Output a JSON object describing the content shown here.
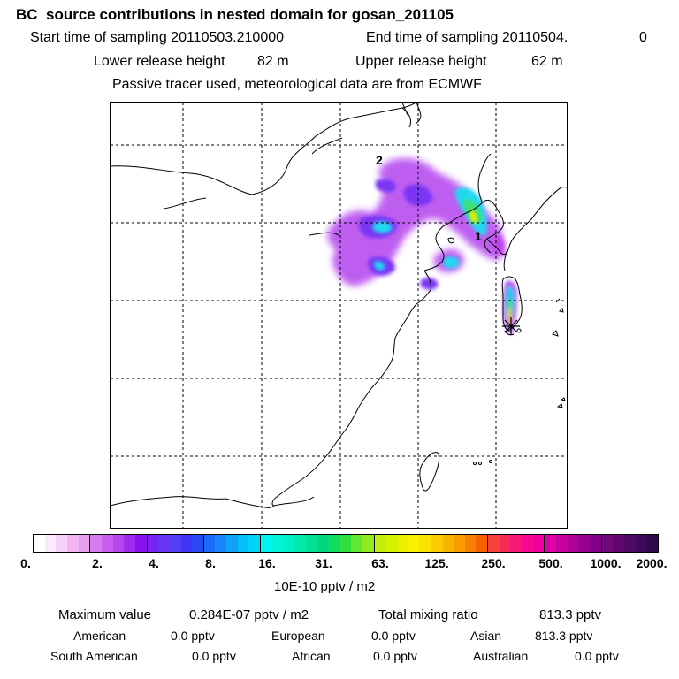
{
  "header": {
    "title": "BC  source contributions in nested domain for gosan_201105",
    "start_label": "Start time of sampling 20110503.210000",
    "end_label": "End time of sampling 20110504.",
    "end_value": "0",
    "lower_label": "Lower release height",
    "lower_value": "82 m",
    "upper_label": "Upper release height",
    "upper_value": "62 m",
    "tracer_note": "Passive tracer used, meteorological data are from ECMWF"
  },
  "map": {
    "point_labels": [
      "2",
      "1"
    ]
  },
  "colorbar": {
    "tick_labels": [
      "0.",
      "2.",
      "4.",
      "8.",
      "16.",
      "31.",
      "63.",
      "125.",
      "250.",
      "500.",
      "1000.",
      "2000."
    ],
    "unit_label": "10E-10 pptv / m2",
    "groups": [
      [
        "#ffffff",
        "#fde9fd",
        "#f8d2f8",
        "#f0b4f2",
        "#e8a0ee"
      ],
      [
        "#d77af0",
        "#c65ef0",
        "#b846f0",
        "#a22cee",
        "#8a10ee"
      ],
      [
        "#7a22f0",
        "#6a32f4",
        "#5640f6",
        "#3e36f4",
        "#2a4af8"
      ],
      [
        "#1a6cf8",
        "#1686f8",
        "#10a2f8",
        "#08bef8",
        "#00d4f6"
      ],
      [
        "#00f4f0",
        "#00f4da",
        "#00f0c4",
        "#00eaac",
        "#00e096"
      ],
      [
        "#00d880",
        "#10dc60",
        "#30e040",
        "#60e830",
        "#90ec20"
      ],
      [
        "#c0f010",
        "#d8f000",
        "#e8f000",
        "#f8f000",
        "#f8e400"
      ],
      [
        "#f8cc00",
        "#f8b400",
        "#f89c00",
        "#f88000",
        "#f86000"
      ],
      [
        "#f84040",
        "#f82858",
        "#f81878",
        "#f80890",
        "#f000a0"
      ],
      [
        "#e000a8",
        "#c800a0",
        "#b00098",
        "#980090",
        "#800088"
      ],
      [
        "#70087a",
        "#600870",
        "#500866",
        "#40085a",
        "#30084e"
      ]
    ]
  },
  "stats": {
    "max_label": "Maximum value",
    "max_value": "0.284E-07 pptv / m2",
    "total_label": "Total mixing ratio",
    "total_value": "813.3 pptv",
    "regions": [
      {
        "name": "American",
        "value": "0.0 pptv"
      },
      {
        "name": "European",
        "value": "0.0 pptv"
      },
      {
        "name": "Asian",
        "value": "813.3 pptv"
      },
      {
        "name": "South American",
        "value": "0.0 pptv"
      },
      {
        "name": "African",
        "value": "0.0 pptv"
      },
      {
        "name": "Australian",
        "value": "0.0 pptv"
      }
    ]
  }
}
